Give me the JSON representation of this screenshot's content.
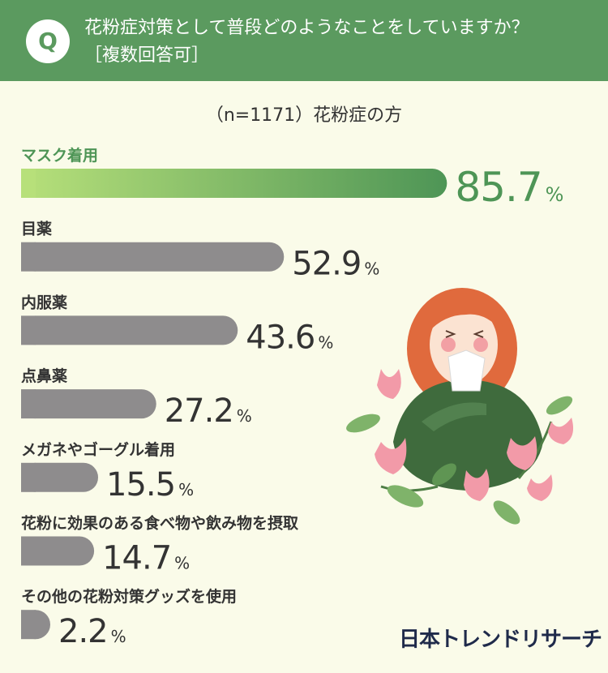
{
  "question": {
    "badge": "Q",
    "line1": "花粉症対策として普段どのようなことをしていますか？",
    "line2": "［複数回答可］"
  },
  "subtitle": "（n=1171）花粉症の方",
  "logo": "日本トレンドリサーチ",
  "colors": {
    "header": "#5b9a5f",
    "background": "#fafbe9",
    "highlight_start": "#b7e07a",
    "highlight_end": "#4e9556",
    "bar_gray": "#8e8c8d",
    "text_dark": "#333333",
    "text_green": "#4e9556"
  },
  "chart_data": {
    "type": "bar",
    "orientation": "horizontal",
    "unit": "%",
    "categories": [
      "マスク着用",
      "目薬",
      "内服薬",
      "点鼻薬",
      "メガネやゴーグル着用",
      "花粉に効果のある食べ物や飲み物を摂取",
      "その他の花粉対策グッズを使用"
    ],
    "values": [
      85.7,
      52.9,
      43.6,
      27.2,
      15.5,
      14.7,
      2.2
    ],
    "value_labels": [
      "85.7",
      "52.9",
      "43.6",
      "27.2",
      "15.5",
      "14.7",
      "2.2"
    ],
    "highlight_index": 0,
    "xlim": [
      0,
      100
    ]
  }
}
